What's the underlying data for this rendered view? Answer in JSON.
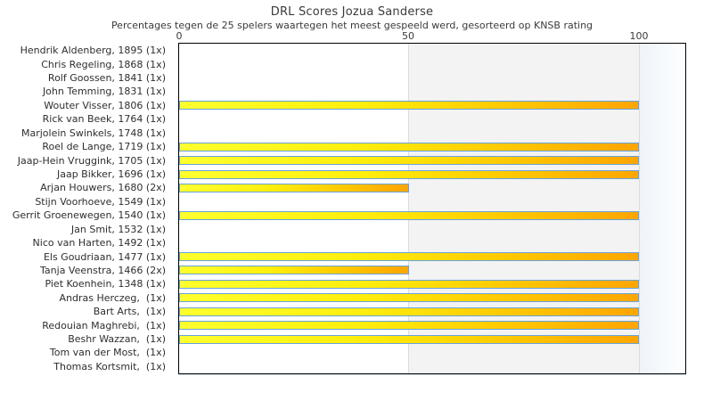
{
  "chart_data": {
    "type": "bar",
    "orientation": "horizontal",
    "title": "DRL Scores Jozua Sanderse",
    "subtitle": "Percentages tegen de 25 spelers waartegen het meest gespeeld werd, gesorteerd op KNSB rating",
    "x_ticks": [
      "0",
      "50",
      "100"
    ],
    "axis_max": 100,
    "xlim": [
      0,
      110
    ],
    "grid": true,
    "legend": "none",
    "players": [
      {
        "label": "Hendrik Aldenberg, 1895 (1x)",
        "value": 0
      },
      {
        "label": "Chris Regeling, 1868 (1x)",
        "value": 0
      },
      {
        "label": "Rolf Goossen, 1841 (1x)",
        "value": 0
      },
      {
        "label": "John Temming, 1831 (1x)",
        "value": 0
      },
      {
        "label": "Wouter Visser, 1806 (1x)",
        "value": 100
      },
      {
        "label": "Rick van Beek, 1764 (1x)",
        "value": 0
      },
      {
        "label": "Marjolein Swinkels, 1748 (1x)",
        "value": 0
      },
      {
        "label": "Roel de Lange, 1719 (1x)",
        "value": 100
      },
      {
        "label": "Jaap-Hein Vruggink, 1705 (1x)",
        "value": 100
      },
      {
        "label": "Jaap Bikker, 1696 (1x)",
        "value": 100
      },
      {
        "label": "Arjan Houwers, 1680 (2x)",
        "value": 50
      },
      {
        "label": "Stijn Voorhoeve, 1549 (1x)",
        "value": 0
      },
      {
        "label": "Gerrit Groenewegen, 1540 (1x)",
        "value": 100
      },
      {
        "label": "Jan Smit, 1532 (1x)",
        "value": 0
      },
      {
        "label": "Nico van Harten, 1492 (1x)",
        "value": 0
      },
      {
        "label": "Els Goudriaan, 1477 (1x)",
        "value": 100
      },
      {
        "label": "Tanja Veenstra, 1466 (2x)",
        "value": 50
      },
      {
        "label": "Piet Koenhein, 1348 (1x)",
        "value": 100
      },
      {
        "label": "Andras Herczeg,  (1x)",
        "value": 100
      },
      {
        "label": "Bart Arts,  (1x)",
        "value": 100
      },
      {
        "label": "Redouian Maghrebi,  (1x)",
        "value": 100
      },
      {
        "label": "Beshr Wazzan,  (1x)",
        "value": 100
      },
      {
        "label": "Tom van der Most,  (1x)",
        "value": 0
      },
      {
        "label": "Thomas Kortsmit,  (1x)",
        "value": 0
      }
    ],
    "colors": {
      "bar_gradient_start": "#ffff2e",
      "bar_gradient_end": "#ffa502",
      "bar_border": "#69a3d9",
      "band_white": "#ffffff",
      "band_gray": "#f3f3f3",
      "band_overflow": "#edf3fa",
      "plot_border": "#000000",
      "text": "#3a3a3a"
    }
  }
}
